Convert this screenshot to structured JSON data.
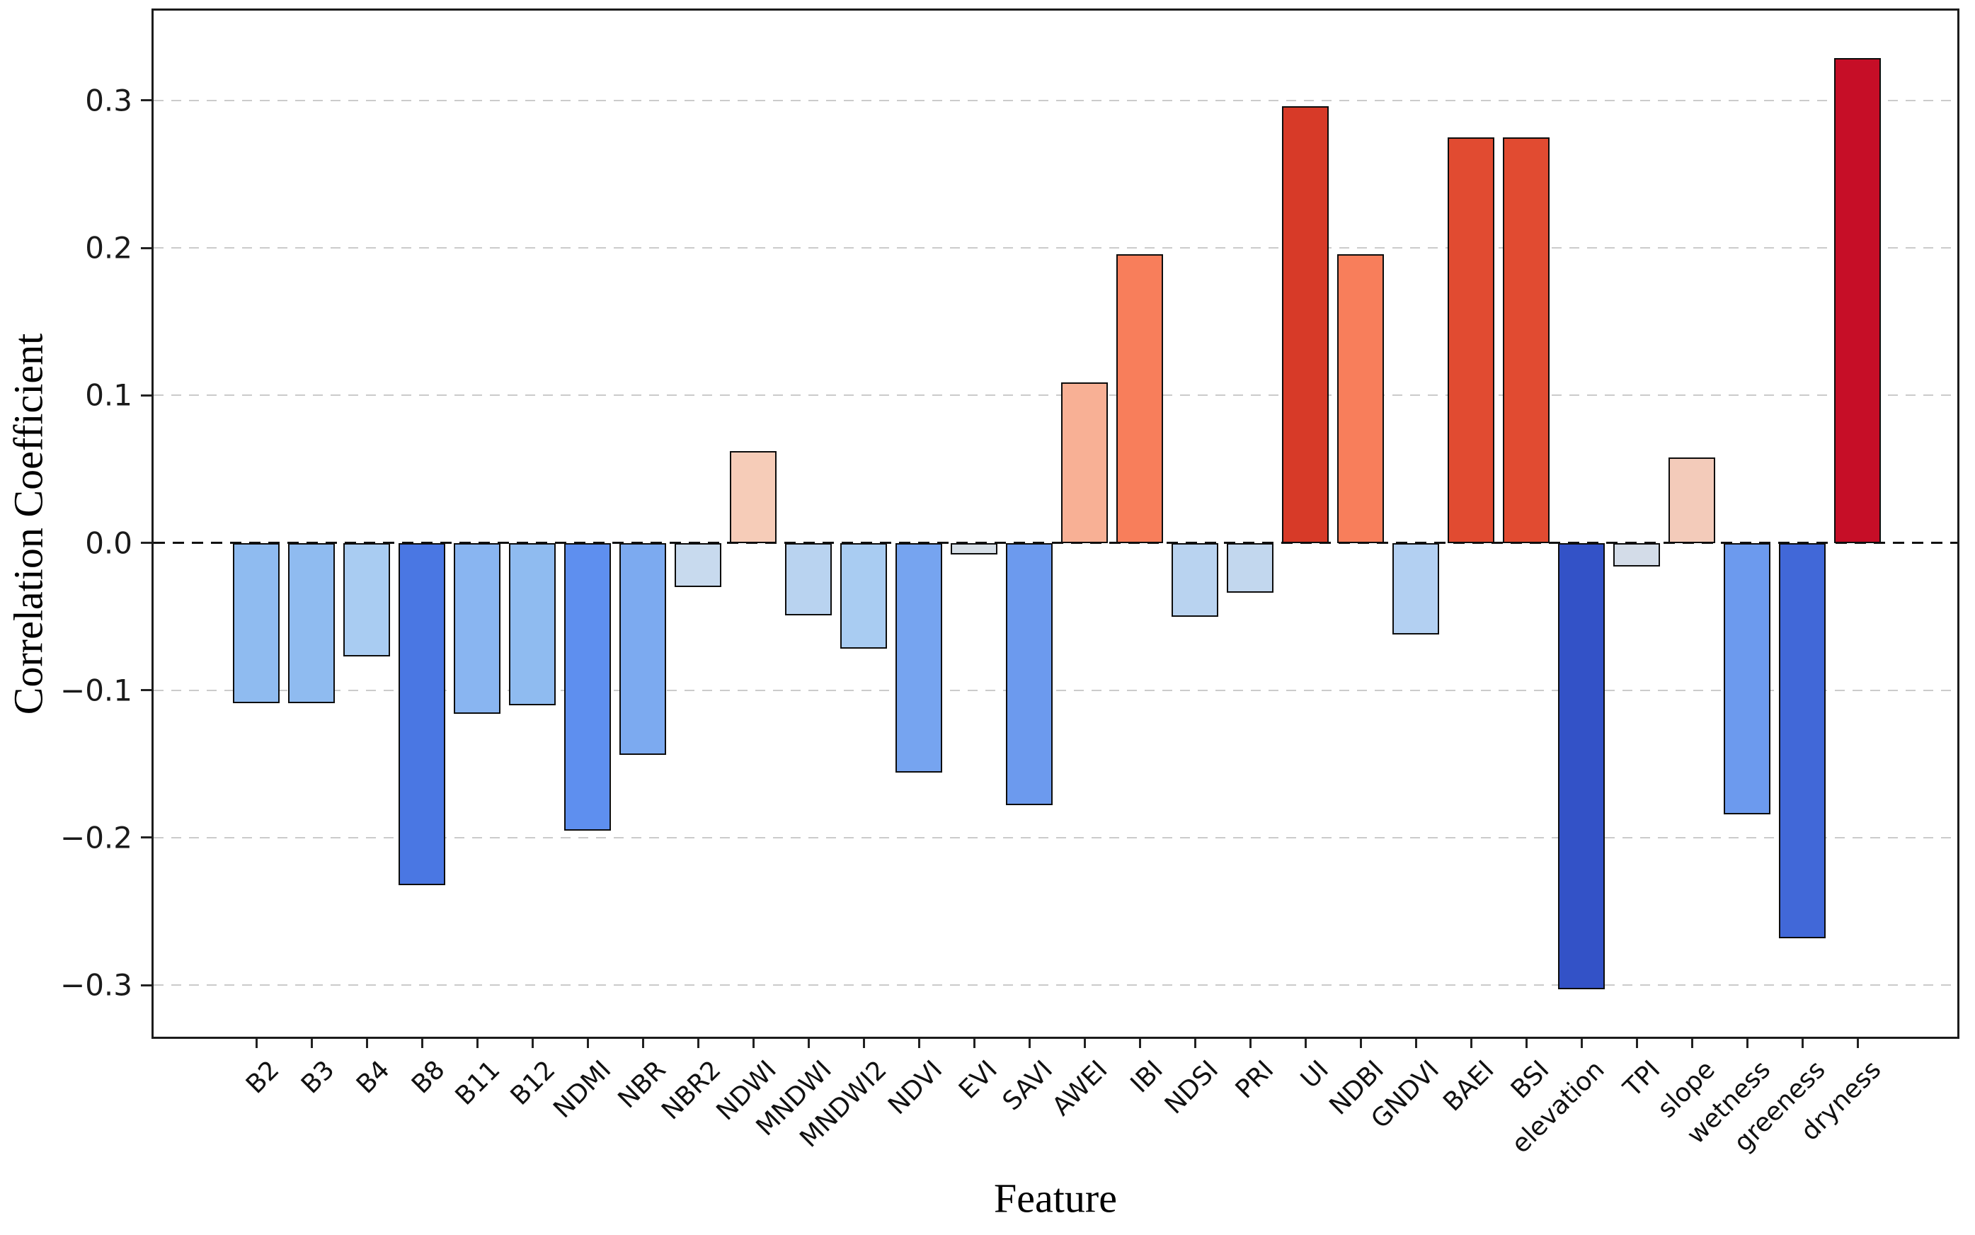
{
  "figure": {
    "background": "#ffffff"
  },
  "chart_data": {
    "type": "bar",
    "title": "",
    "xlabel": "Feature",
    "ylabel": "Correlation Coefficient",
    "categories": [
      "B2",
      "B3",
      "B4",
      "B8",
      "B11",
      "B12",
      "NDMI",
      "NBR",
      "NBR2",
      "NDWI",
      "MNDWI",
      "MNDWI2",
      "NDVI",
      "EVI",
      "SAVI",
      "AWEI",
      "IBI",
      "NDSI",
      "PRI",
      "UI",
      "NDBI",
      "GNDVI",
      "BAEI",
      "BSI",
      "elevation",
      "TPI",
      "slope",
      "wetness",
      "greeness",
      "dryness"
    ],
    "values": [
      -0.109,
      -0.109,
      -0.077,
      -0.232,
      -0.116,
      -0.11,
      -0.195,
      -0.144,
      -0.03,
      0.062,
      -0.049,
      -0.072,
      -0.156,
      -0.008,
      -0.178,
      0.109,
      0.196,
      -0.05,
      -0.034,
      0.296,
      0.196,
      -0.062,
      0.275,
      0.275,
      -0.303,
      -0.016,
      0.058,
      -0.184,
      -0.268,
      0.329
    ],
    "bar_colors": [
      "#8FBBF0",
      "#8FBBF0",
      "#A9CCF2",
      "#4A77E3",
      "#89B5F1",
      "#8FBBF0",
      "#5E8FEF",
      "#7CAAF0",
      "#C8DAEE",
      "#F6CCB8",
      "#B9D3F0",
      "#A9CCF2",
      "#76A4F0",
      "#D6DEE6",
      "#6C9AEE",
      "#F8B095",
      "#F87E5B",
      "#B9D3F0",
      "#C2D7EE",
      "#D73A28",
      "#F87E5B",
      "#B3D0F2",
      "#E14B31",
      "#E14B31",
      "#3352C7",
      "#D3DCE8",
      "#F3CBBA",
      "#6C9AEE",
      "#4168D8",
      "#C60E27"
    ],
    "bar_edge_color": "#0d0d0d",
    "ytick_values": [
      0.3,
      0.2,
      0.1,
      0.0,
      -0.1,
      -0.2,
      -0.3
    ],
    "ytick_labels": [
      "0.3",
      "0.2",
      "0.1",
      "0.0",
      "−0.1",
      "−0.2",
      "−0.3"
    ],
    "ylim": [
      -0.335,
      0.361
    ],
    "grid": "horizontal-dashed",
    "gridline_color": "#cbcbcb",
    "zero_line": "black-dashed",
    "legend": "none"
  }
}
